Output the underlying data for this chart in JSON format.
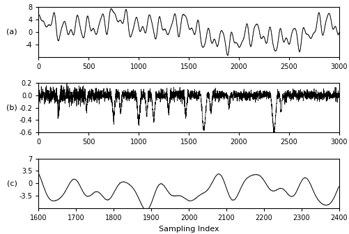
{
  "fig_width": 5.02,
  "fig_height": 3.36,
  "dpi": 100,
  "background_color": "#ffffff",
  "line_color_main": "#000000",
  "line_color_model": "#808080",
  "panel_a": {
    "xlim": [
      0,
      3000
    ],
    "ylim": [
      -8,
      8
    ],
    "yticks": [
      -4,
      0,
      4,
      8
    ],
    "xticks": [
      0,
      500,
      1000,
      1500,
      2000,
      2500,
      3000
    ],
    "label": "(a)"
  },
  "panel_b": {
    "xlim": [
      0,
      3000
    ],
    "ylim": [
      -0.6,
      0.2
    ],
    "yticks": [
      -0.6,
      -0.4,
      -0.2,
      0.0,
      0.2
    ],
    "xticks": [
      0,
      500,
      1000,
      1500,
      2000,
      2500,
      3000
    ],
    "label": "(b)"
  },
  "panel_c": {
    "xlim": [
      1600,
      2400
    ],
    "ylim": [
      -7,
      7
    ],
    "yticks": [
      -3.5,
      0,
      3.5,
      7
    ],
    "xticks": [
      1600,
      1700,
      1800,
      1900,
      2000,
      2100,
      2200,
      2300,
      2400
    ],
    "label": "(c)"
  },
  "xlabel": "Sampling Index",
  "xlabel_fontsize": 8,
  "tick_fontsize": 7,
  "label_fontsize": 8
}
